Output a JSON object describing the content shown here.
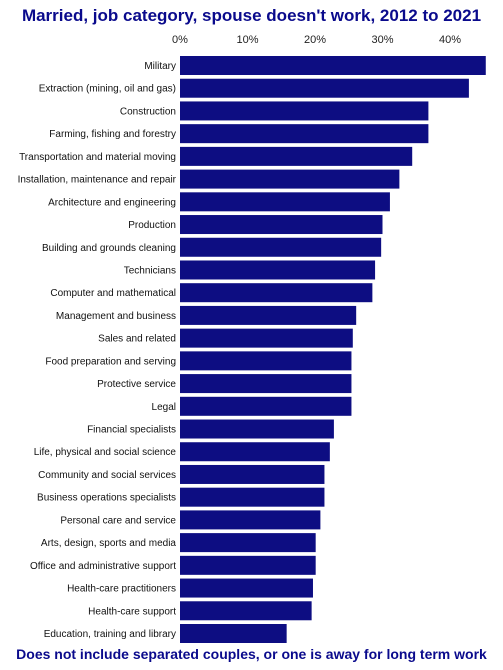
{
  "title": "Married, job category, spouse doesn't work, 2012 to 2021",
  "footer": "Does not include separated couples, or one is away for long term work",
  "colors": {
    "bar": "#0d0d82",
    "title": "#0a0a8c"
  },
  "chart_data": {
    "type": "bar",
    "orientation": "horizontal",
    "title": "Married, job category, spouse doesn't work, 2012 to 2021",
    "xlabel": "",
    "ylabel": "",
    "xlim": [
      0,
      45
    ],
    "x_ticks": [
      0,
      10,
      20,
      30,
      40
    ],
    "x_tick_labels": [
      "0%",
      "10%",
      "20%",
      "30%",
      "40%"
    ],
    "grid": false,
    "categories": [
      "Military",
      "Extraction (mining, oil and gas)",
      "Construction",
      "Farming, fishing and forestry",
      "Transportation and material moving",
      "Installation, maintenance and repair",
      "Architecture and engineering",
      "Production",
      "Building and grounds cleaning",
      "Technicians",
      "Computer and mathematical",
      "Management and business",
      "Sales and related",
      "Food preparation and serving",
      "Protective service",
      "Legal",
      "Financial specialists",
      "Life, physical and social science",
      "Community and social services",
      "Business operations specialists",
      "Personal care and service",
      "Arts, design, sports and media",
      "Office and administrative support",
      "Health-care practitioners",
      "Health-care support",
      "Education, training and library"
    ],
    "values": [
      45.3,
      42.8,
      36.8,
      36.8,
      34.4,
      32.5,
      31.1,
      30.0,
      29.8,
      28.9,
      28.5,
      26.1,
      25.6,
      25.4,
      25.4,
      25.4,
      22.8,
      22.2,
      21.4,
      21.4,
      20.8,
      20.1,
      20.1,
      19.7,
      19.5,
      15.8
    ]
  }
}
